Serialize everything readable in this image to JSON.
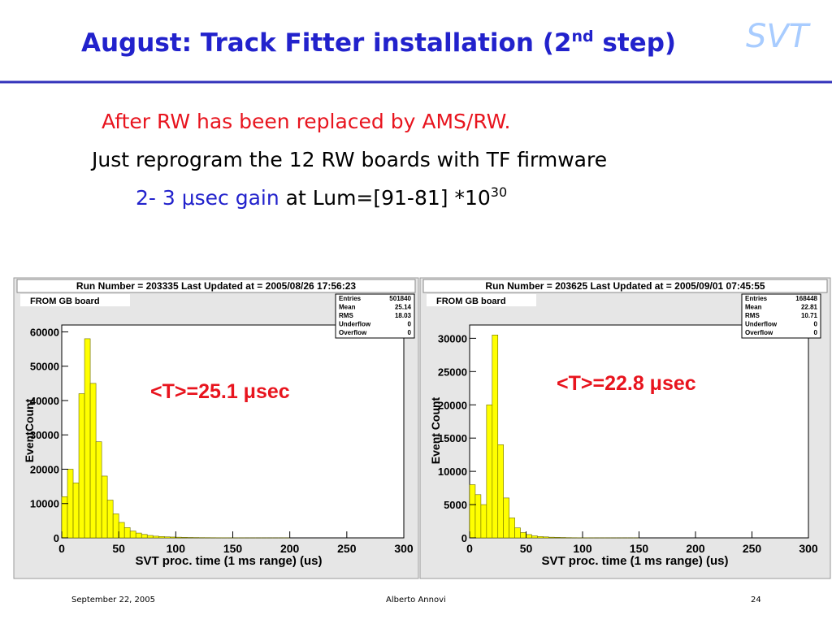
{
  "slide": {
    "title": [
      "August: Track Fitter installation (2",
      "nd",
      " step)"
    ],
    "logo": "SVT",
    "lines": [
      [
        "After RW has been replaced by AMS/RW."
      ],
      [
        "Just reprogram the 12 RW boards with TF firmware"
      ],
      [
        "2- 3 μsec gain",
        " at Lum=[91-81] *10",
        "30"
      ]
    ],
    "footer": {
      "date": "September 22, 2005",
      "author": "Alberto Annovi",
      "page": "24"
    }
  },
  "chart_data": [
    {
      "type": "histogram",
      "header": "Run Number = 203335   Last Updated at = 2005/08/26 17:56:23",
      "label": "FROM GB board",
      "stats": [
        {
          "label": "Entries",
          "value": 501840
        },
        {
          "label": "Mean",
          "value": 25.14
        },
        {
          "label": "RMS",
          "value": 18.03
        },
        {
          "label": "Underflow",
          "value": 0
        },
        {
          "label": "Overflow",
          "value": 0
        }
      ],
      "annotation": "<T>=25.1 μsec",
      "x_label": "SVT proc. time (1 ms range) (us)",
      "y_label": "EventCount",
      "color": "#ffff00",
      "bins": [
        0,
        5,
        10,
        15,
        20,
        25,
        30,
        35,
        40,
        45,
        50,
        55,
        60,
        65,
        70,
        75,
        80,
        85,
        90,
        95,
        100,
        105,
        110,
        115,
        120,
        125,
        130,
        135,
        140,
        145,
        150,
        155,
        160,
        165,
        170,
        175,
        180,
        185,
        190,
        195,
        200,
        205,
        210,
        215,
        220,
        225,
        230,
        235,
        240,
        245,
        250,
        255,
        260,
        265,
        270,
        275,
        280,
        285,
        290,
        295,
        300
      ],
      "counts": [
        12000,
        20000,
        16000,
        42000,
        58000,
        45000,
        28000,
        18000,
        11000,
        7000,
        4500,
        3000,
        2000,
        1400,
        1000,
        700,
        500,
        400,
        300,
        250,
        200,
        150,
        120,
        100,
        80,
        70,
        60,
        50,
        40,
        30,
        20,
        15,
        10,
        8,
        6,
        5,
        4,
        3,
        2,
        1,
        0,
        0,
        0,
        0,
        0,
        0,
        0,
        0,
        0,
        0,
        0,
        0,
        0,
        0,
        0,
        0,
        0,
        0,
        0,
        0
      ],
      "xlim": [
        0,
        300
      ],
      "xticks": [
        0,
        50,
        100,
        150,
        200,
        250,
        300
      ],
      "ylim": [
        0,
        62000
      ],
      "yticks": [
        0,
        10000,
        20000,
        30000,
        40000,
        50000,
        60000
      ]
    },
    {
      "type": "histogram",
      "header": "Run Number = 203625   Last Updated at = 2005/09/01 07:45:55",
      "label": "FROM GB board",
      "stats": [
        {
          "label": "Entries",
          "value": 168448
        },
        {
          "label": "Mean",
          "value": 22.81
        },
        {
          "label": "RMS",
          "value": 10.71
        },
        {
          "label": "Underflow",
          "value": 0
        },
        {
          "label": "Overflow",
          "value": 0
        }
      ],
      "annotation": "<T>=22.8 μsec",
      "x_label": "SVT proc. time (1 ms range) (us)",
      "y_label": "Event Count",
      "color": "#ffff00",
      "bins": [
        0,
        5,
        10,
        15,
        20,
        25,
        30,
        35,
        40,
        45,
        50,
        55,
        60,
        65,
        70,
        75,
        80,
        85,
        90,
        95,
        100,
        105,
        110,
        115,
        120,
        125,
        130,
        135,
        140,
        145,
        150,
        155,
        160,
        165,
        170,
        175,
        180,
        185,
        190,
        195,
        200,
        205,
        210,
        215,
        220,
        225,
        230,
        235,
        240,
        245,
        250,
        255,
        260,
        265,
        270,
        275,
        280,
        285,
        290,
        295,
        300
      ],
      "counts": [
        8000,
        6500,
        5000,
        20000,
        30500,
        14000,
        6000,
        3000,
        1500,
        800,
        500,
        300,
        200,
        150,
        100,
        80,
        60,
        40,
        30,
        20,
        15,
        10,
        8,
        6,
        5,
        4,
        3,
        2,
        1,
        1,
        0,
        0,
        0,
        0,
        0,
        0,
        0,
        0,
        0,
        0,
        0,
        0,
        0,
        0,
        0,
        0,
        0,
        0,
        0,
        0,
        0,
        0,
        0,
        0,
        0,
        0,
        0,
        0,
        0,
        0
      ],
      "xlim": [
        0,
        300
      ],
      "xticks": [
        0,
        50,
        100,
        150,
        200,
        250,
        300
      ],
      "ylim": [
        0,
        32000
      ],
      "yticks": [
        0,
        5000,
        10000,
        15000,
        20000,
        25000,
        30000
      ]
    }
  ]
}
